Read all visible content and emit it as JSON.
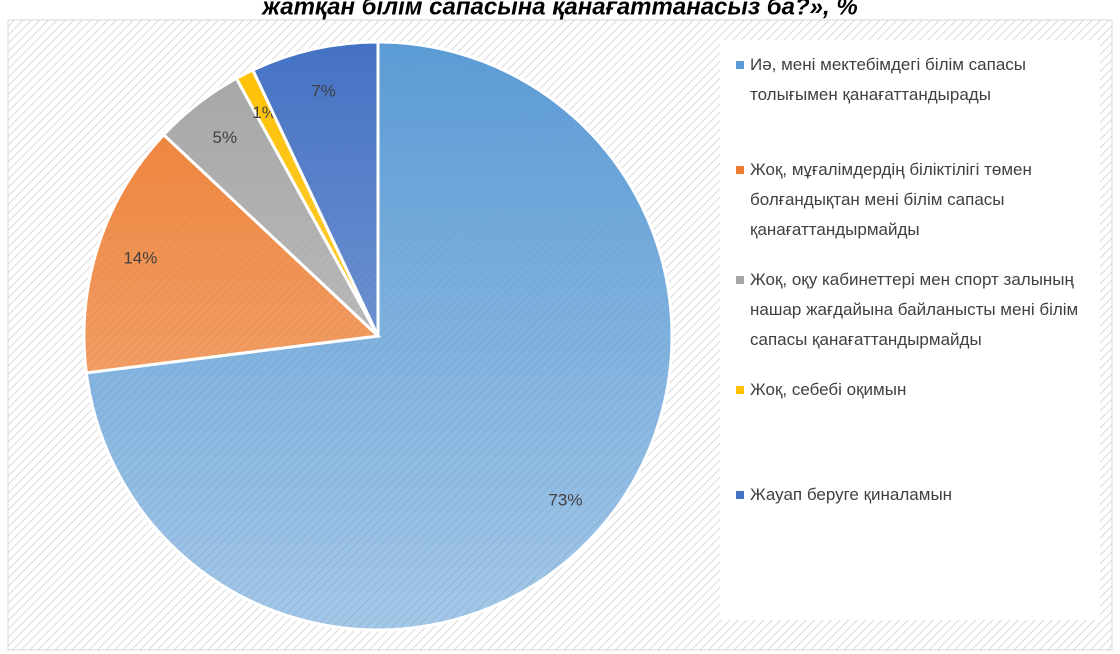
{
  "chart_data": {
    "type": "pie",
    "title": "жатқан білім сапасына қанағаттанасыз ба?», %",
    "categories": [
      "Иә, мені мектебімдегі білім сапасы толығымен қанағаттандырады",
      "Жоқ, мұғалімдердің біліктілігі төмен болғандықтан мені білім сапасы қанағаттандырмайды",
      "Жоқ, оқу кабинеттері мен спорт залының нашар жағдайына байланысты мені білім сапасы қанағаттандырмайды",
      "Жоқ, себебі оқимын",
      "Жауап беруге қиналамын"
    ],
    "values": [
      73,
      14,
      5,
      1,
      7
    ],
    "value_labels": [
      "73%",
      "14%",
      "5%",
      "1%",
      "7%"
    ],
    "colors": [
      "#5b9bd5",
      "#ed7d31",
      "#a5a5a5",
      "#ffc000",
      "#4472c4"
    ],
    "legend": "right"
  }
}
